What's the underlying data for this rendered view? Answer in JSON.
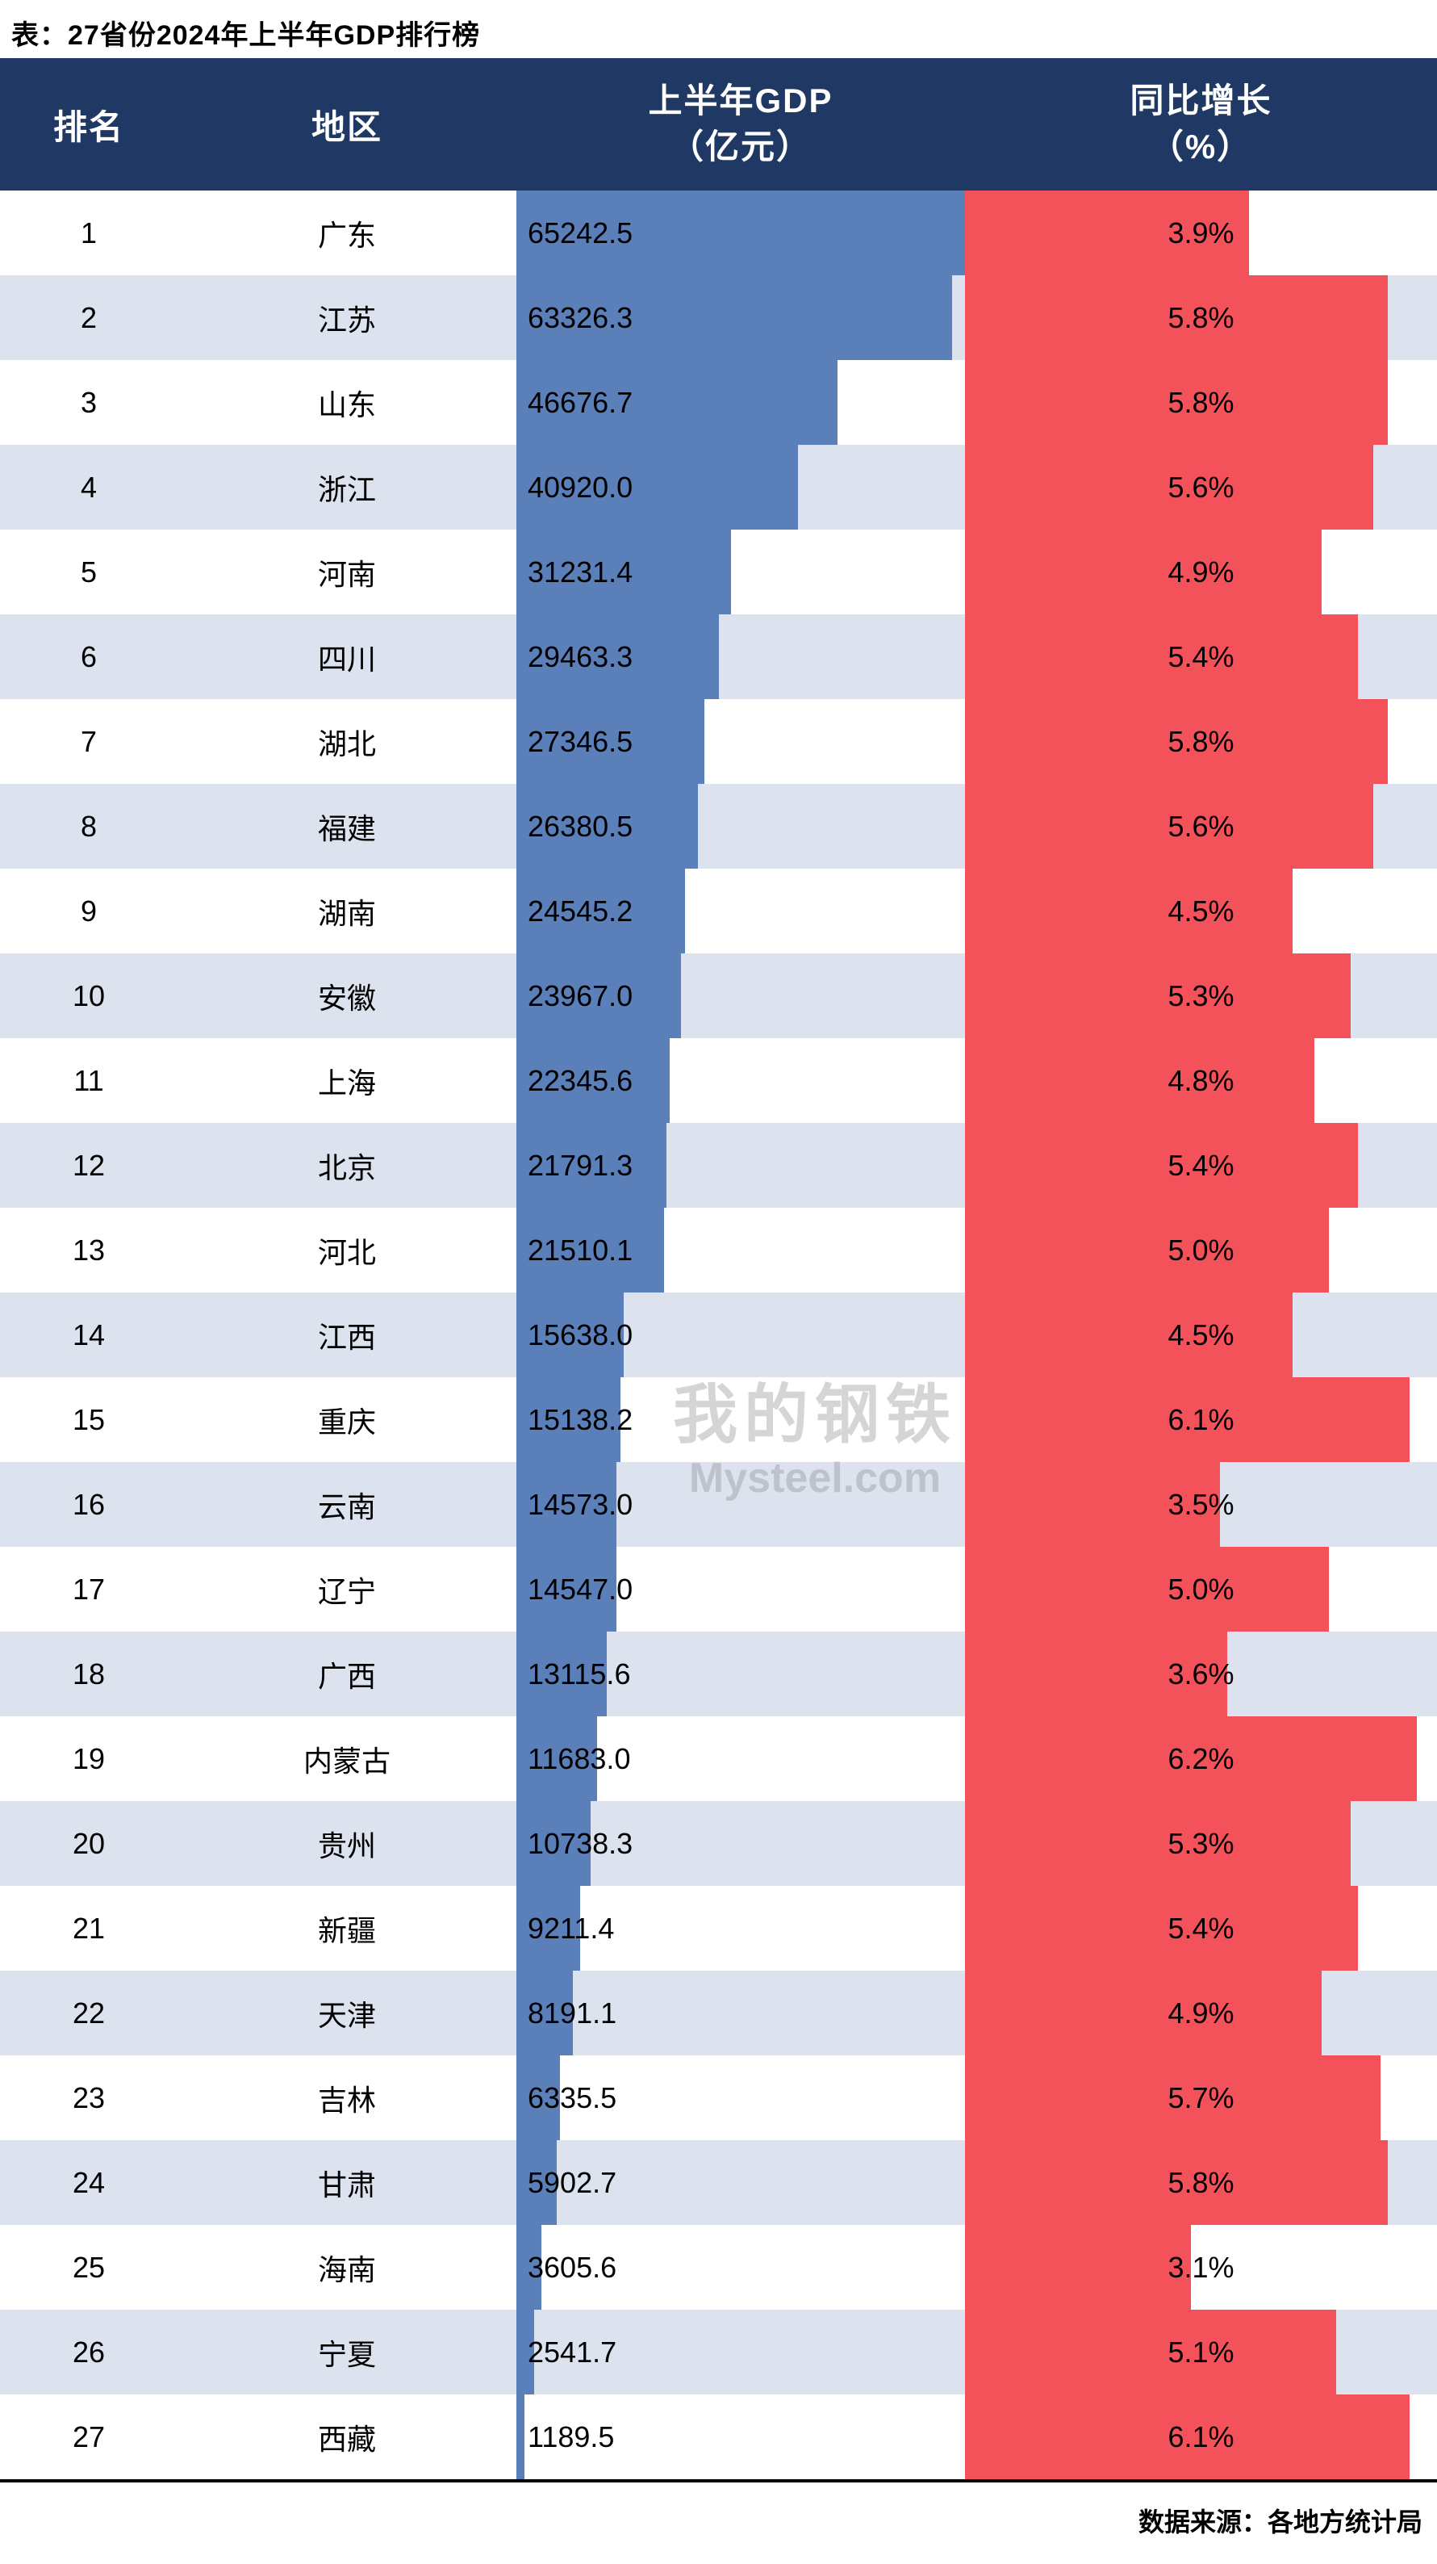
{
  "title": "表：27省份2024年上半年GDP排行榜",
  "header": {
    "rank": "排名",
    "region": "地区",
    "gdp_line1": "上半年GDP",
    "gdp_line2": "（亿元）",
    "growth_line1": "同比增长",
    "growth_line2": "（%）"
  },
  "watermark": {
    "line1": "我的钢铁",
    "line2": "Mysteel.com"
  },
  "footer": {
    "source": "数据来源：各地方统计局"
  },
  "colors": {
    "header_bg": "#1f3864",
    "header_text": "#ffffff",
    "row_alt_bg": "#dce3ef",
    "gdp_bar": "#5b7fb9",
    "growth_bar": "#f4525a",
    "body_text": "#000000"
  },
  "chart_data": {
    "type": "bar",
    "title": "27省份2024年上半年GDP排行榜",
    "orientation": "horizontal",
    "categories": [
      "广东",
      "江苏",
      "山东",
      "浙江",
      "河南",
      "四川",
      "湖北",
      "福建",
      "湖南",
      "安徽",
      "上海",
      "北京",
      "河北",
      "江西",
      "重庆",
      "云南",
      "辽宁",
      "广西",
      "内蒙古",
      "贵州",
      "新疆",
      "天津",
      "吉林",
      "甘肃",
      "海南",
      "宁夏",
      "西藏"
    ],
    "ranks": [
      1,
      2,
      3,
      4,
      5,
      6,
      7,
      8,
      9,
      10,
      11,
      12,
      13,
      14,
      15,
      16,
      17,
      18,
      19,
      20,
      21,
      22,
      23,
      24,
      25,
      26,
      27
    ],
    "series": [
      {
        "name": "上半年GDP（亿元）",
        "values": [
          65242.5,
          63326.3,
          46676.7,
          40920.0,
          31231.4,
          29463.3,
          27346.5,
          26380.5,
          24545.2,
          23967.0,
          22345.6,
          21791.3,
          21510.1,
          15638.0,
          15138.2,
          14573.0,
          14547.0,
          13115.6,
          11683.0,
          10738.3,
          9211.4,
          8191.1,
          6335.5,
          5902.7,
          3605.6,
          2541.7,
          1189.5
        ]
      },
      {
        "name": "同比增长（%）",
        "values": [
          3.9,
          5.8,
          5.8,
          5.6,
          4.9,
          5.4,
          5.8,
          5.6,
          4.5,
          5.3,
          4.8,
          5.4,
          5.0,
          4.5,
          6.1,
          3.5,
          5.0,
          3.6,
          6.2,
          5.3,
          5.4,
          4.9,
          5.7,
          5.8,
          3.1,
          5.1,
          6.1
        ]
      }
    ],
    "gdp_axis_max": 65242.5,
    "growth_axis_max": 6.48,
    "legend_position": "none",
    "grid": false
  }
}
